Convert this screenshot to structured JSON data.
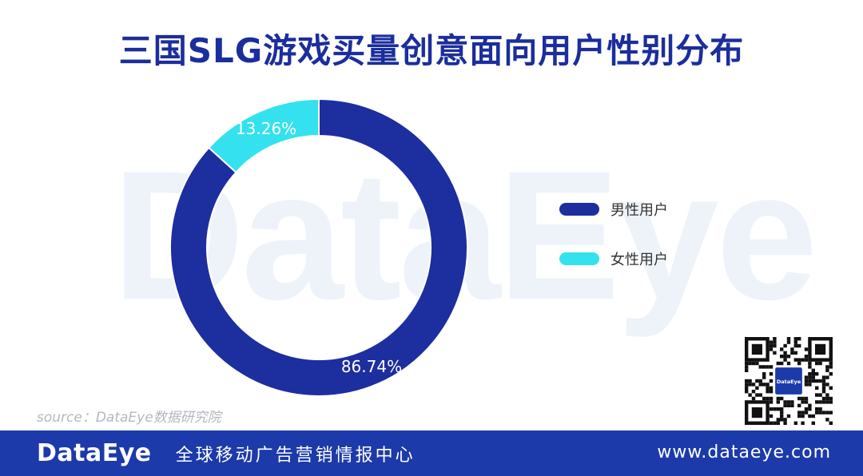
{
  "header": {
    "title": "三国SLG游戏买量创意面向用户性别分布"
  },
  "watermark": {
    "text": "DataEye"
  },
  "chart_data": {
    "type": "pie",
    "donut": true,
    "categories": [
      "男性用户",
      "女性用户"
    ],
    "values": [
      86.74,
      13.26
    ],
    "value_labels": [
      "86.74%",
      "13.26%"
    ],
    "colors": [
      "#1d2e9f",
      "#33e2ee"
    ],
    "legend_position": "right"
  },
  "source": {
    "text": "source：DataEye数据研究院"
  },
  "qr": {
    "center_label": "DataEye"
  },
  "footer": {
    "logo": "DataEye",
    "slogan": "全球移动广告营销情报中心",
    "url": "www.dataeye.com"
  }
}
